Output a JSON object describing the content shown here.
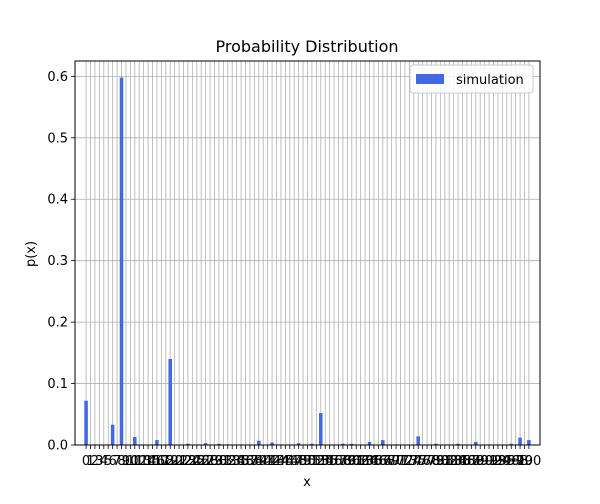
{
  "chart_data": {
    "type": "bar",
    "title": "Probability Distribution",
    "xlabel": "x",
    "ylabel": "p(x)",
    "xlim": [
      -2.5,
      102.5
    ],
    "ylim": [
      0,
      0.625
    ],
    "yticks": [
      0.0,
      0.1,
      0.2,
      0.3,
      0.4,
      0.5,
      0.6
    ],
    "ytick_labels": [
      "0.0",
      "0.1",
      "0.2",
      "0.3",
      "0.4",
      "0.5",
      "0.6"
    ],
    "xticks": [
      0,
      1,
      2,
      3,
      4,
      5,
      6,
      7,
      8,
      9,
      10,
      11,
      12,
      13,
      14,
      15,
      16,
      17,
      18,
      19,
      20,
      21,
      22,
      23,
      24,
      25,
      26,
      27,
      28,
      29,
      30,
      31,
      32,
      33,
      34,
      35,
      36,
      37,
      38,
      39,
      40,
      41,
      42,
      43,
      44,
      45,
      46,
      47,
      48,
      49,
      50,
      51,
      52,
      53,
      54,
      55,
      56,
      57,
      58,
      59,
      60,
      61,
      62,
      63,
      64,
      65,
      66,
      67,
      68,
      69,
      70,
      71,
      72,
      73,
      74,
      75,
      76,
      77,
      78,
      79,
      80,
      81,
      82,
      83,
      84,
      85,
      86,
      87,
      88,
      89,
      90,
      91,
      92,
      93,
      94,
      95,
      96,
      97,
      98,
      99,
      100
    ],
    "grid": true,
    "legend_position": "top-right",
    "bar_color": "#4169e1",
    "grid_color": "#b0b0b0",
    "series": [
      {
        "name": "simulation",
        "x": [
          0,
          6,
          8,
          11,
          16,
          19,
          23,
          27,
          30,
          32,
          39,
          42,
          48,
          51,
          53,
          58,
          60,
          64,
          67,
          70,
          75,
          79,
          84,
          88,
          96,
          98,
          100
        ],
        "values": [
          0.072,
          0.033,
          0.598,
          0.013,
          0.008,
          0.14,
          0.002,
          0.003,
          0.002,
          0.001,
          0.007,
          0.004,
          0.003,
          0.002,
          0.052,
          0.002,
          0.002,
          0.005,
          0.008,
          0.001,
          0.014,
          0.002,
          0.002,
          0.005,
          0.002,
          0.012,
          0.008
        ]
      }
    ]
  }
}
